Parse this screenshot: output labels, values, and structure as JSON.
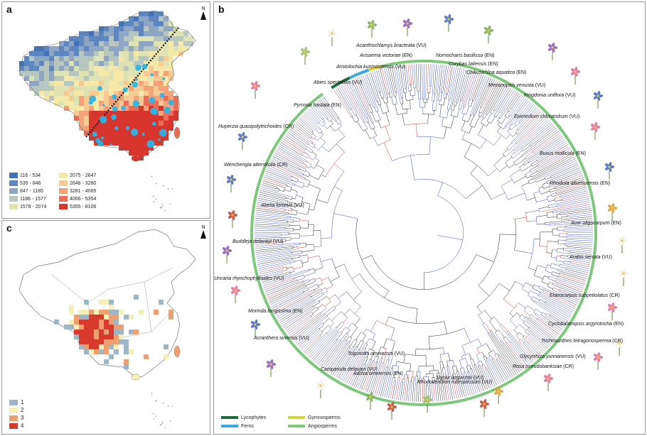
{
  "panel_a": {
    "letter": "a",
    "north": "N",
    "legend": [
      {
        "label": "116 - 534",
        "color": "#4472b8"
      },
      {
        "label": "535 - 846",
        "color": "#5e86c0"
      },
      {
        "label": "847 - 1185",
        "color": "#8ea6c4"
      },
      {
        "label": "1186 - 1577",
        "color": "#b7c7c0"
      },
      {
        "label": "1578 - 2074",
        "color": "#dfe3b4"
      },
      {
        "label": "2075 - 2647",
        "color": "#f6e8a8"
      },
      {
        "label": "2648 - 3280",
        "color": "#f7c993"
      },
      {
        "label": "3281 - 4065",
        "color": "#f3a27a"
      },
      {
        "label": "4066 - 5354",
        "color": "#ea6e55"
      },
      {
        "label": "5355 - 8106",
        "color": "#d8352e"
      }
    ]
  },
  "panel_c": {
    "letter": "c",
    "north": "N",
    "legend": [
      {
        "label": "1",
        "color": "#9fb6c6"
      },
      {
        "label": "2",
        "color": "#f5efb8"
      },
      {
        "label": "3",
        "color": "#f0a070"
      },
      {
        "label": "4",
        "color": "#d83a2e"
      }
    ]
  },
  "panel_b": {
    "letter": "b",
    "species": [
      {
        "name": "Acanthochlamys bracteata",
        "status": "(VU)"
      },
      {
        "name": "Arisaema victoriae",
        "status": "(EN)"
      },
      {
        "name": "Nomocharis basilissa",
        "status": "(EN)"
      },
      {
        "name": "Aristolochia kunmingensis",
        "status": "(VU)"
      },
      {
        "name": "Corybas taliensis",
        "status": "(EN)"
      },
      {
        "name": "Chikusichloa aquatica",
        "status": "(EN)"
      },
      {
        "name": "Abies spectabilis",
        "status": "(VU)"
      },
      {
        "name": "Meconopsis venusta",
        "status": "(VU)"
      },
      {
        "name": "Pyrrosia hastata",
        "status": "(EN)"
      },
      {
        "name": "Kingdonia uniflora",
        "status": "(VU)"
      },
      {
        "name": "Epimedium chlorandrum",
        "status": "(VU)"
      },
      {
        "name": "Huperzia quasipolytrichoides",
        "status": "(CR)"
      },
      {
        "name": "Buxus mollicula",
        "status": "(EN)"
      },
      {
        "name": "Wenchengia alternifolia",
        "status": "(CR)"
      },
      {
        "name": "Rhodiola alturtsuensis",
        "status": "(EN)"
      },
      {
        "name": "Abelia forrestii",
        "status": "(VU)"
      },
      {
        "name": "Acer oligocarpum",
        "status": "(EN)"
      },
      {
        "name": "Buddleja delavayi",
        "status": "(VU)"
      },
      {
        "name": "Arabis serrata",
        "status": "(VU)"
      },
      {
        "name": "Uncaria rhynchophylloides",
        "status": "(VU)"
      },
      {
        "name": "Elaeocarpus subpetiolatus",
        "status": "(CR)"
      },
      {
        "name": "Morinda longissima",
        "status": "(EN)"
      },
      {
        "name": "Cyclobalanopsis argyrotricha",
        "status": "(EN)"
      },
      {
        "name": "Acranthera sinensis",
        "status": "(VU)"
      },
      {
        "name": "Trichosanthes tetragonosperma",
        "status": "(CR)"
      },
      {
        "name": "Trigonotis omeiensis",
        "status": "(VU)"
      },
      {
        "name": "Glycyrrhiza yunnanensis",
        "status": "(VU)"
      },
      {
        "name": "Campanula delavayi",
        "status": "(VU)"
      },
      {
        "name": "Rosa pseudobanksiae",
        "status": "(CR)"
      },
      {
        "name": "Adoxa omeiensis",
        "status": "(EN)"
      },
      {
        "name": "Styrax limprichtii",
        "status": "(VU)"
      },
      {
        "name": "Rhododendron rubropilosum",
        "status": "(VU)"
      }
    ],
    "legend": [
      {
        "label": "Lycophytes",
        "color": "#1e6b3a"
      },
      {
        "label": "Gymnosperms",
        "color": "#d6d43a"
      },
      {
        "label": "Ferns",
        "color": "#3aa8e0"
      },
      {
        "label": "Angiosperms",
        "color": "#7ec87e"
      }
    ],
    "branch_colors": {
      "red": "#d8352e",
      "blue": "#3b4fb8",
      "black": "#222222"
    }
  }
}
